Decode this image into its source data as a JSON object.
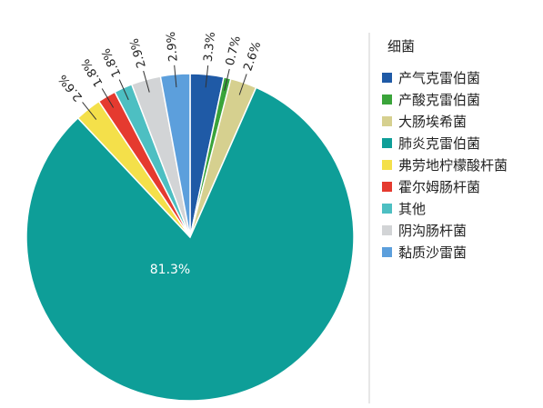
{
  "chart_data": {
    "type": "pie",
    "legend_title": "细菌",
    "legend_position": "right",
    "slices": [
      {
        "name": "产气克雷伯菌",
        "value": 3.3,
        "label": "3.3%",
        "color": "#1f5aa6"
      },
      {
        "name": "产酸克雷伯菌",
        "value": 0.7,
        "label": "0.7%",
        "color": "#3aa43a"
      },
      {
        "name": "大肠埃希菌",
        "value": 2.6,
        "label": "2.6%",
        "color": "#d6d08f"
      },
      {
        "name": "肺炎克雷伯菌",
        "value": 81.3,
        "label": "81.3%",
        "color": "#0e9e98"
      },
      {
        "name": "弗劳地柠檬酸杆菌",
        "value": 2.6,
        "label": "2.6%",
        "color": "#f4e04a"
      },
      {
        "name": "霍尔姆肠杆菌",
        "value": 1.8,
        "label": "1.8%",
        "color": "#e53a2f"
      },
      {
        "name": "其他",
        "value": 1.8,
        "label": "1.8%",
        "color": "#4dbfc2"
      },
      {
        "name": "阴沟肠杆菌",
        "value": 2.9,
        "label": "2.9%",
        "color": "#d2d4d6"
      },
      {
        "name": "黏质沙雷菌",
        "value": 2.9,
        "label": "2.9%",
        "color": "#5c9fdc"
      }
    ]
  }
}
